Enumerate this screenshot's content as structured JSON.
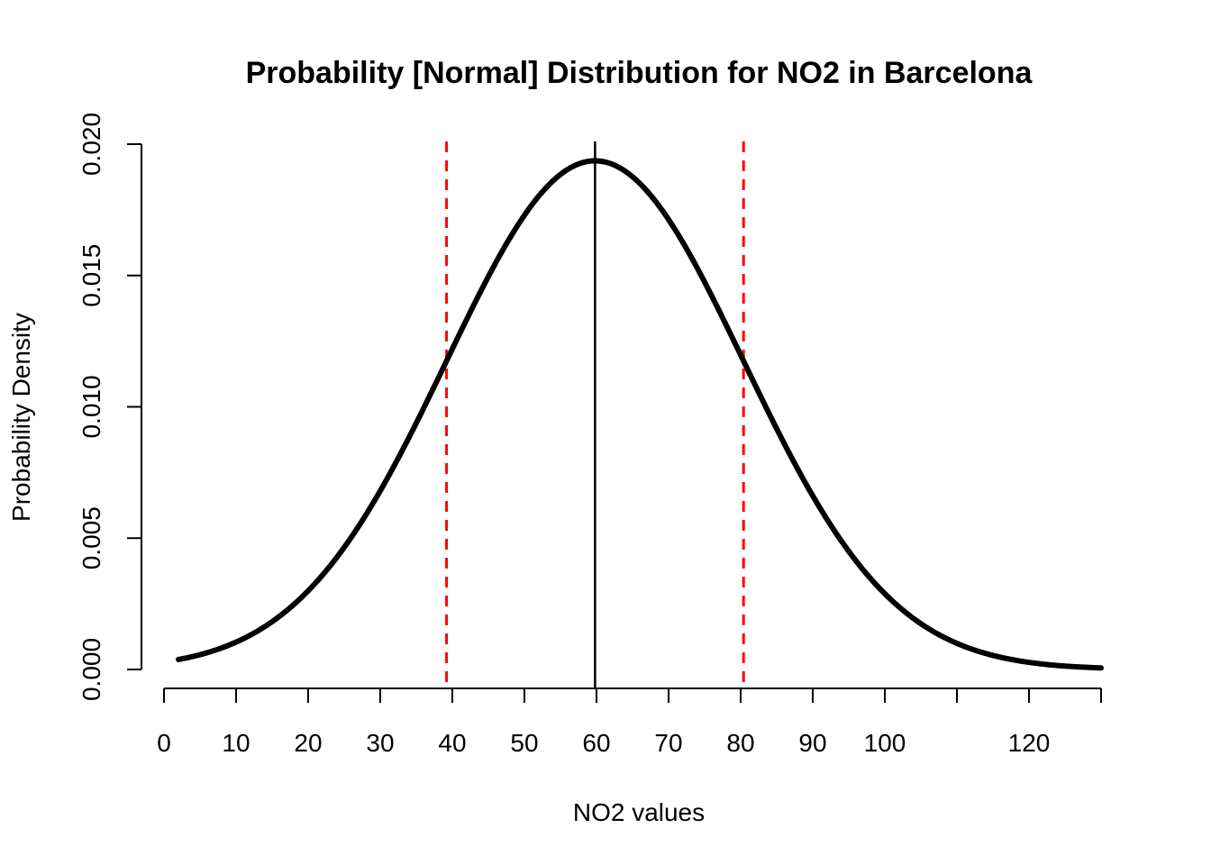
{
  "chart_data": {
    "type": "line",
    "title": "Probability [Normal] Distribution for NO2 in Barcelona",
    "xlabel": "NO2 values",
    "ylabel": "Probability Density",
    "xlim": [
      0,
      130
    ],
    "ylim": [
      0,
      0.02
    ],
    "x_ticks": [
      0,
      10,
      20,
      30,
      40,
      50,
      60,
      70,
      80,
      90,
      100,
      110,
      120,
      130
    ],
    "x_tick_labels": [
      "0",
      "10",
      "20",
      "30",
      "40",
      "50",
      "60",
      "70",
      "80",
      "90",
      "100",
      "",
      "120",
      ""
    ],
    "y_ticks": [
      0,
      0.005,
      0.01,
      0.015,
      0.02
    ],
    "y_tick_labels": [
      "0.000",
      "0.005",
      "0.010",
      "0.015",
      "0.020"
    ],
    "grid": false,
    "series": [
      {
        "kind": "normal-density",
        "mean": 59.8,
        "sd": 20.6,
        "x_range": [
          2,
          130
        ],
        "color": "#000000"
      }
    ],
    "reference_lines": [
      {
        "x": 59.8,
        "color": "#000000",
        "style": "solid"
      },
      {
        "x": 39.2,
        "color": "#ff0000",
        "style": "dashed"
      },
      {
        "x": 80.4,
        "color": "#ff0000",
        "style": "dashed"
      }
    ]
  }
}
